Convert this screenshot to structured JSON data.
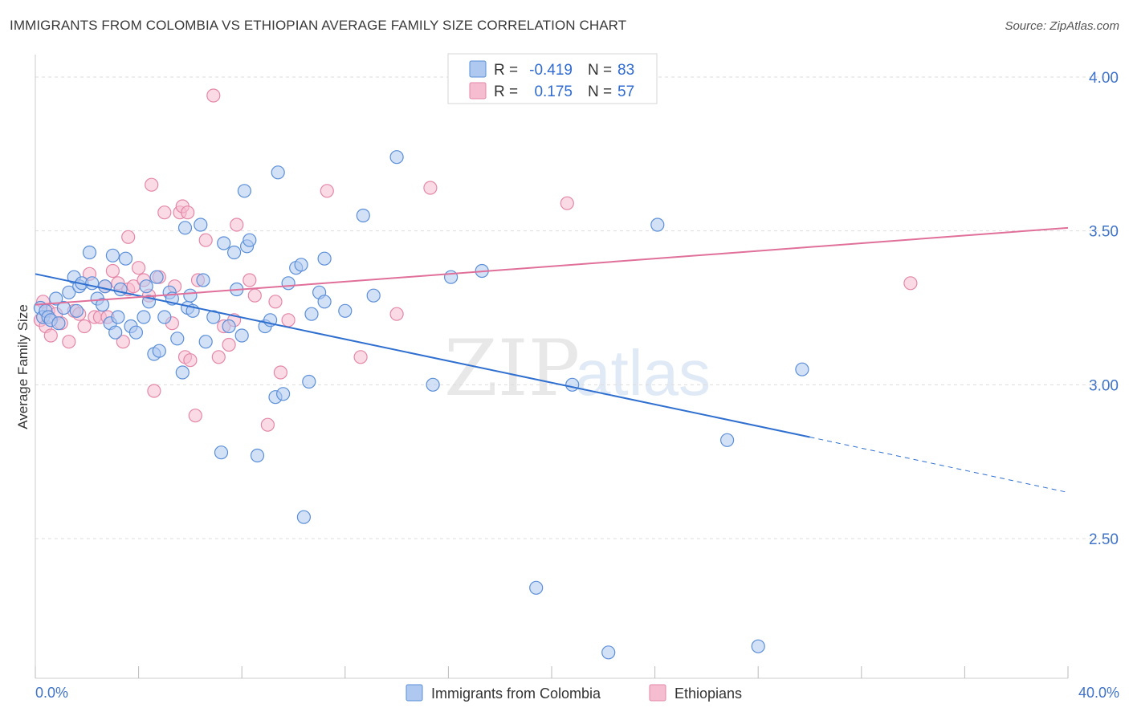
{
  "title": "IMMIGRANTS FROM COLOMBIA VS ETHIOPIAN AVERAGE FAMILY SIZE CORRELATION CHART",
  "source": "Source: ZipAtlas.com",
  "watermark": {
    "zip": "ZIP",
    "atlas": "atlas"
  },
  "colors": {
    "blue_fill": "#aec8f0",
    "blue_stroke": "#5b8fd8",
    "blue_line": "#2f6fd0",
    "pink_fill": "#f6bcd0",
    "pink_stroke": "#e487a8",
    "pink_line": "#e0709a",
    "tick_text": "#3f73c9",
    "grid": "#dddddd"
  },
  "legend": {
    "rows": [
      {
        "r_label": "R =",
        "r_value": "-0.419",
        "n_label": "N =",
        "n_value": "83"
      },
      {
        "r_label": "R =",
        "r_value": "0.175",
        "n_label": "N =",
        "n_value": "57"
      }
    ]
  },
  "chart_data": {
    "type": "scatter",
    "title": "IMMIGRANTS FROM COLOMBIA VS ETHIOPIAN AVERAGE FAMILY SIZE CORRELATION CHART",
    "xlabel": "",
    "ylabel": "Average Family Size",
    "xlim": [
      0,
      40
    ],
    "ylim": [
      2.0,
      4.1
    ],
    "x_tick_labels": [
      "0.0%",
      "40.0%"
    ],
    "y_ticks": [
      2.5,
      3.0,
      3.5,
      4.0
    ],
    "y_tick_labels": [
      "2.50",
      "3.00",
      "3.50",
      "4.00"
    ],
    "grid": true,
    "legend_position": "top-center",
    "series": [
      {
        "name": "Immigrants from Colombia",
        "color": "#aec8f0",
        "r": -0.419,
        "n": 83,
        "trend": {
          "x": [
            0,
            30
          ],
          "y": [
            3.36,
            2.83
          ],
          "dashed_to": [
            40,
            2.65
          ]
        },
        "points": [
          [
            0.2,
            3.25
          ],
          [
            0.3,
            3.22
          ],
          [
            0.4,
            3.24
          ],
          [
            0.5,
            3.22
          ],
          [
            0.6,
            3.21
          ],
          [
            0.8,
            3.28
          ],
          [
            0.9,
            3.2
          ],
          [
            1.1,
            3.25
          ],
          [
            1.3,
            3.3
          ],
          [
            1.5,
            3.35
          ],
          [
            1.6,
            3.24
          ],
          [
            1.7,
            3.32
          ],
          [
            1.8,
            3.33
          ],
          [
            2.1,
            3.43
          ],
          [
            2.2,
            3.33
          ],
          [
            2.4,
            3.28
          ],
          [
            2.6,
            3.26
          ],
          [
            2.7,
            3.32
          ],
          [
            2.9,
            3.2
          ],
          [
            3.0,
            3.42
          ],
          [
            3.1,
            3.17
          ],
          [
            3.2,
            3.22
          ],
          [
            3.3,
            3.31
          ],
          [
            3.5,
            3.41
          ],
          [
            3.7,
            3.19
          ],
          [
            3.9,
            3.17
          ],
          [
            4.2,
            3.22
          ],
          [
            4.3,
            3.32
          ],
          [
            4.4,
            3.27
          ],
          [
            4.6,
            3.1
          ],
          [
            4.7,
            3.35
          ],
          [
            4.8,
            3.11
          ],
          [
            5.0,
            3.22
          ],
          [
            5.2,
            3.3
          ],
          [
            5.3,
            3.28
          ],
          [
            5.5,
            3.15
          ],
          [
            5.7,
            3.04
          ],
          [
            5.8,
            3.51
          ],
          [
            5.9,
            3.25
          ],
          [
            6.0,
            3.29
          ],
          [
            6.1,
            3.24
          ],
          [
            6.4,
            3.52
          ],
          [
            6.5,
            3.34
          ],
          [
            6.6,
            3.14
          ],
          [
            6.9,
            3.22
          ],
          [
            7.2,
            2.78
          ],
          [
            7.3,
            3.46
          ],
          [
            7.5,
            3.19
          ],
          [
            7.7,
            3.43
          ],
          [
            7.8,
            3.31
          ],
          [
            8.0,
            3.16
          ],
          [
            8.1,
            3.63
          ],
          [
            8.2,
            3.45
          ],
          [
            8.3,
            3.47
          ],
          [
            8.6,
            2.77
          ],
          [
            8.9,
            3.19
          ],
          [
            9.1,
            3.21
          ],
          [
            9.3,
            2.96
          ],
          [
            9.4,
            3.69
          ],
          [
            9.6,
            2.97
          ],
          [
            9.8,
            3.33
          ],
          [
            10.1,
            3.38
          ],
          [
            10.3,
            3.39
          ],
          [
            10.4,
            2.57
          ],
          [
            10.6,
            3.01
          ],
          [
            10.7,
            3.23
          ],
          [
            11.0,
            3.3
          ],
          [
            11.2,
            3.41
          ],
          [
            12.0,
            3.24
          ],
          [
            12.7,
            3.55
          ],
          [
            13.1,
            3.29
          ],
          [
            14.0,
            3.74
          ],
          [
            15.4,
            3.0
          ],
          [
            16.1,
            3.35
          ],
          [
            17.3,
            3.37
          ],
          [
            19.4,
            2.34
          ],
          [
            20.8,
            3.0
          ],
          [
            22.2,
            2.13
          ],
          [
            24.1,
            3.52
          ],
          [
            26.8,
            2.82
          ],
          [
            28.0,
            2.15
          ],
          [
            29.7,
            3.05
          ],
          [
            11.2,
            3.27
          ]
        ]
      },
      {
        "name": "Ethiopians",
        "color": "#f6bcd0",
        "r": 0.175,
        "n": 57,
        "trend": {
          "x": [
            0,
            40
          ],
          "y": [
            3.26,
            3.51
          ]
        },
        "points": [
          [
            0.2,
            3.21
          ],
          [
            0.3,
            3.27
          ],
          [
            0.4,
            3.19
          ],
          [
            0.5,
            3.24
          ],
          [
            0.6,
            3.16
          ],
          [
            0.8,
            3.23
          ],
          [
            1.0,
            3.2
          ],
          [
            1.3,
            3.14
          ],
          [
            1.5,
            3.24
          ],
          [
            1.7,
            3.23
          ],
          [
            1.9,
            3.19
          ],
          [
            2.1,
            3.36
          ],
          [
            2.3,
            3.22
          ],
          [
            2.5,
            3.22
          ],
          [
            2.7,
            3.32
          ],
          [
            2.8,
            3.22
          ],
          [
            3.0,
            3.37
          ],
          [
            3.2,
            3.33
          ],
          [
            3.4,
            3.14
          ],
          [
            3.6,
            3.31
          ],
          [
            3.6,
            3.48
          ],
          [
            3.8,
            3.32
          ],
          [
            4.0,
            3.38
          ],
          [
            4.2,
            3.34
          ],
          [
            4.4,
            3.29
          ],
          [
            4.5,
            3.65
          ],
          [
            4.6,
            2.98
          ],
          [
            4.8,
            3.35
          ],
          [
            5.0,
            3.56
          ],
          [
            5.3,
            3.2
          ],
          [
            5.4,
            3.32
          ],
          [
            5.6,
            3.56
          ],
          [
            5.7,
            3.58
          ],
          [
            5.8,
            3.09
          ],
          [
            5.9,
            3.56
          ],
          [
            6.0,
            3.08
          ],
          [
            6.2,
            2.9
          ],
          [
            6.3,
            3.34
          ],
          [
            6.6,
            3.47
          ],
          [
            6.9,
            3.94
          ],
          [
            7.1,
            3.09
          ],
          [
            7.3,
            3.19
          ],
          [
            7.5,
            3.13
          ],
          [
            7.7,
            3.21
          ],
          [
            7.8,
            3.52
          ],
          [
            8.3,
            3.34
          ],
          [
            8.5,
            3.29
          ],
          [
            9.0,
            2.87
          ],
          [
            9.3,
            3.27
          ],
          [
            9.5,
            3.04
          ],
          [
            9.8,
            3.21
          ],
          [
            11.3,
            3.63
          ],
          [
            12.6,
            3.09
          ],
          [
            14.0,
            3.23
          ],
          [
            15.3,
            3.64
          ],
          [
            20.6,
            3.59
          ],
          [
            33.9,
            3.33
          ]
        ]
      }
    ]
  },
  "bottom_legend": [
    {
      "label": "Immigrants from Colombia"
    },
    {
      "label": "Ethiopians"
    }
  ]
}
